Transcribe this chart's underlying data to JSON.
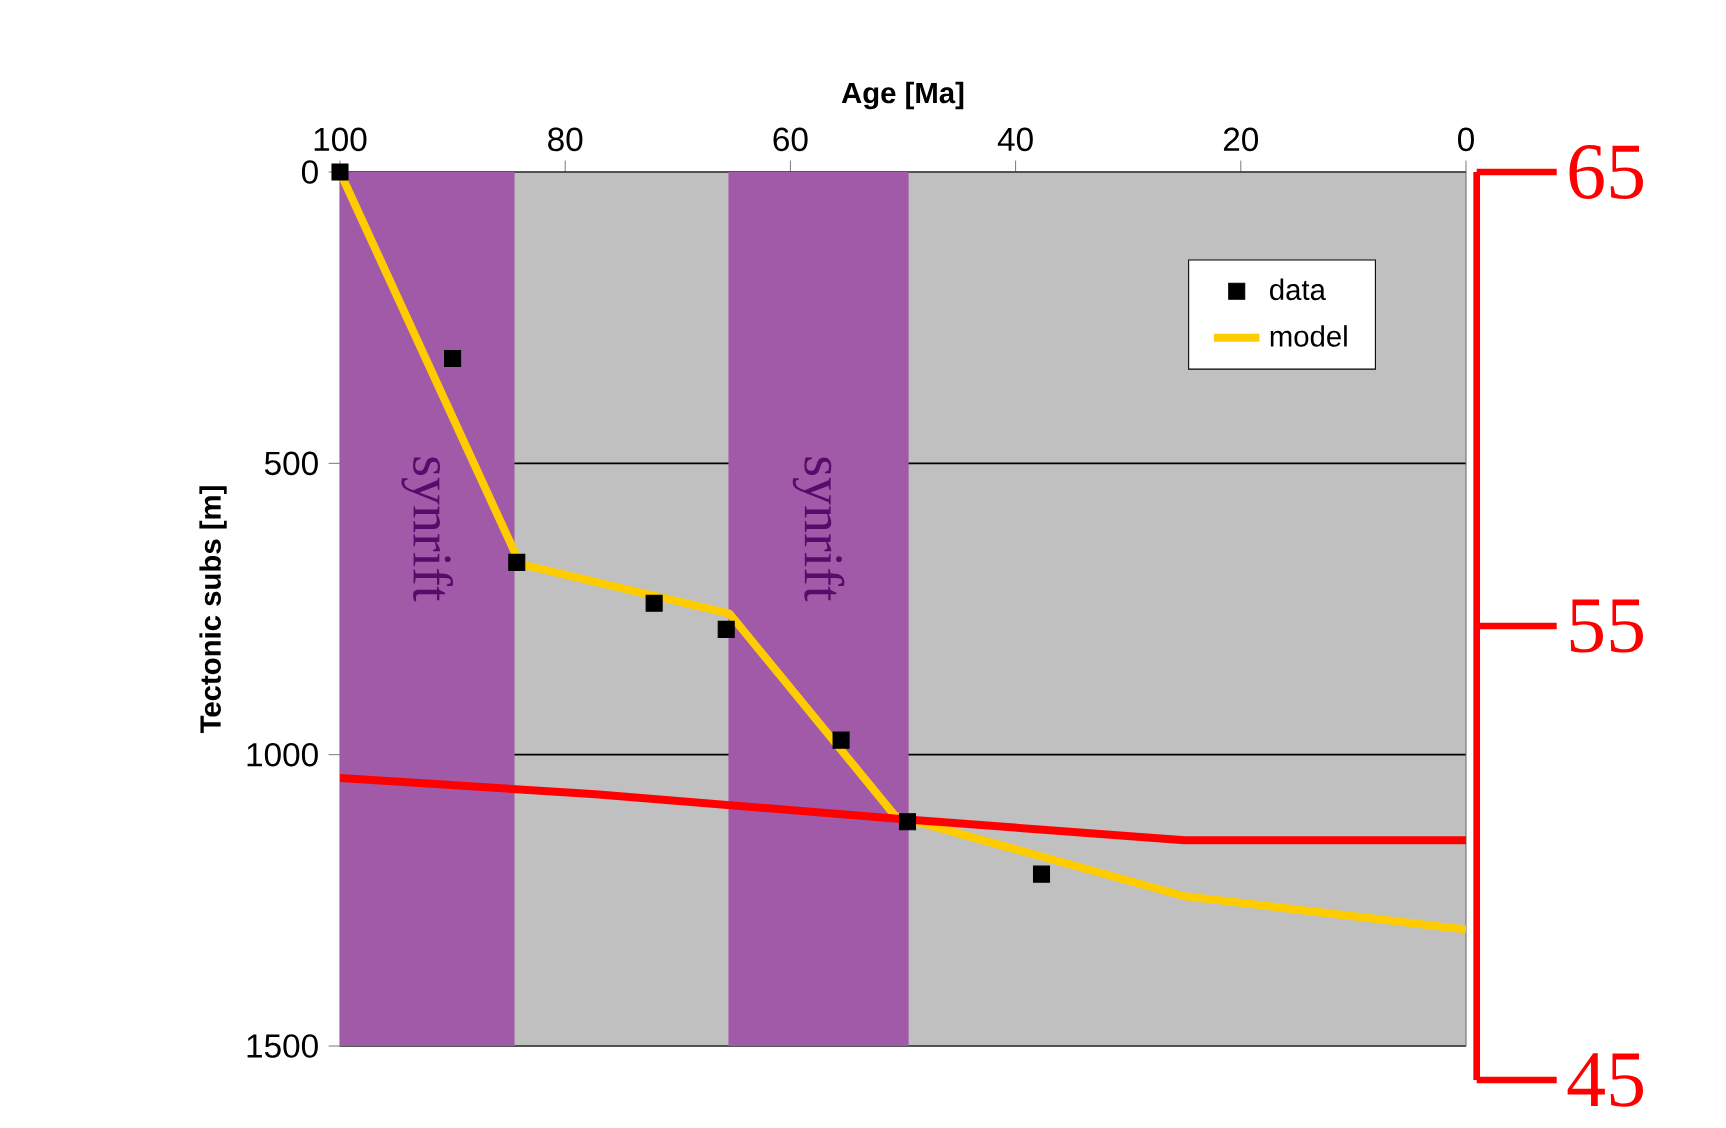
{
  "chart_data": {
    "type": "line",
    "xlabel": "Age [Ma]",
    "ylabel": "Tectonic subs [m]",
    "xlim": [
      100,
      0
    ],
    "xticks": [
      100,
      80,
      60,
      40,
      20,
      0
    ],
    "ylim": [
      1500,
      0
    ],
    "yticks": [
      0,
      500,
      1000,
      1500
    ],
    "y2lim": [
      45,
      65
    ],
    "y2ticks": [
      45,
      55,
      65
    ],
    "grid": "y",
    "legend": "top right",
    "bands": [
      {
        "axis": "x",
        "from": 100,
        "to": 84.5,
        "label": "synrift",
        "color": "#a05aa8"
      },
      {
        "axis": "x",
        "from": 65.5,
        "to": 49.5,
        "label": "synrift",
        "color": "#a05aa8"
      }
    ],
    "series": [
      {
        "name": "data",
        "type": "scatter",
        "marker": "square",
        "color": "#000000",
        "x": [
          100,
          90,
          84.3,
          72.1,
          65.7,
          55.5,
          49.6,
          37.7
        ],
        "values": [
          0,
          320,
          670,
          740,
          785,
          975,
          1115,
          1205
        ]
      },
      {
        "name": "model",
        "color": "#ffcc00",
        "x": [
          100,
          84,
          65.4,
          50.7,
          25,
          0
        ],
        "values": [
          0,
          673,
          758,
          1105,
          1243,
          1300
        ]
      },
      {
        "color": "#ff0000",
        "x": [
          100,
          77.3,
          50.5,
          25,
          0
        ],
        "values": [
          1040,
          1068,
          1110,
          1147,
          1147
        ]
      }
    ]
  }
}
